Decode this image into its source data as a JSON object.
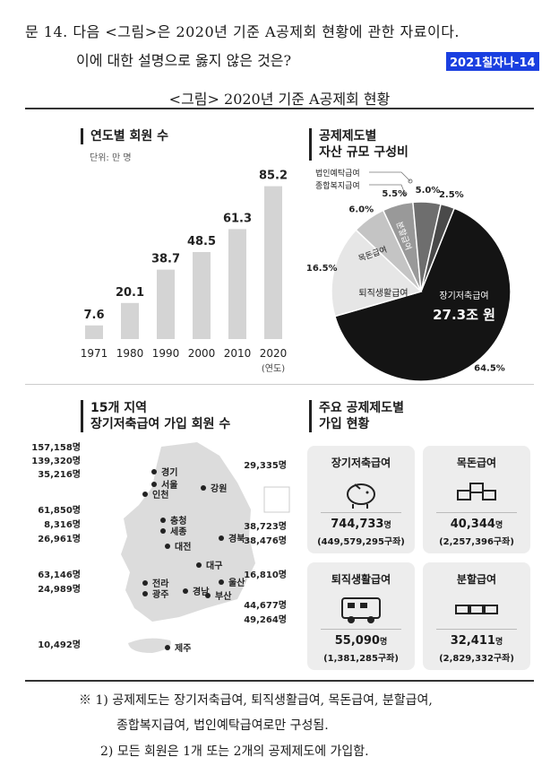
{
  "question": {
    "line1": "문 14. 다음 <그림>은 2020년 기준 A공제회 현황에 관한 자료이다.",
    "line2": "이에 대한 설명으로 옳지 않은 것은?",
    "tag": "2021칠자나-14"
  },
  "figure_title": "<그림> 2020년 기준 A공제회 현황",
  "members": {
    "title": "연도별 회원 수",
    "unit": "단위: 만 명",
    "axis_suffix": "(연도)"
  },
  "pie": {
    "title_line1": "공제제도별",
    "title_line2": "자산 규모 구성비",
    "callout1": "법인예탁급여",
    "callout2": "종합복지급여",
    "labels": [
      "64.5%",
      "16.5%",
      "6.0%",
      "5.5%",
      "5.0%",
      "2.5%"
    ],
    "slice_names": [
      "장기저축급여",
      "퇴직생활급여",
      "목돈급여",
      "분할급여"
    ],
    "center_amount": "27.3조 원"
  },
  "map": {
    "title_line1": "15개 지역",
    "title_line2": "장기저축급여 가입 회원 수",
    "values": [
      "157,158명",
      "139,320명",
      "35,216명",
      "61,850명",
      "8,316명",
      "26,961명",
      "63,146명",
      "24,989명",
      "10,492명",
      "29,335명",
      "38,723명",
      "38,476명",
      "16,810명",
      "44,677명",
      "49,264명"
    ],
    "regions": [
      "경기",
      "서울",
      "인천",
      "강원",
      "충청",
      "세종",
      "대전",
      "경북",
      "대구",
      "전라",
      "광주",
      "울산",
      "경남",
      "부산",
      "제주"
    ]
  },
  "plans": {
    "title_line1": "주요 공제제도별",
    "title_line2": "가입 현황",
    "cards": [
      {
        "name": "장기저축급여",
        "members": "744,733",
        "unit": "명",
        "accounts": "(449,579,295구좌)"
      },
      {
        "name": "목돈급여",
        "members": "40,344",
        "unit": "명",
        "accounts": "(2,257,396구좌)"
      },
      {
        "name": "퇴직생활급여",
        "members": "55,090",
        "unit": "명",
        "accounts": "(1,381,285구좌)"
      },
      {
        "name": "분할급여",
        "members": "32,411",
        "unit": "명",
        "accounts": "(2,829,332구좌)"
      }
    ]
  },
  "notes": {
    "n1a": "※ 1) 공제제도는 장기저축급여, 퇴직생활급여, 목돈급여, 분할급여,",
    "n1b": "종합복지급여, 법인예탁급여로만 구성됨.",
    "n2": "2) 모든 회원은 1개 또는 2개의 공제제도에 가입함."
  },
  "chart_data": [
    {
      "type": "bar",
      "title": "연도별 회원 수",
      "categories": [
        "1971",
        "1980",
        "1990",
        "2000",
        "2010",
        "2020"
      ],
      "values": [
        7.6,
        20.1,
        38.7,
        48.5,
        61.3,
        85.2
      ],
      "xlabel": "(연도)",
      "ylabel": "단위: 만 명",
      "ylim": [
        0,
        90
      ],
      "colors": [
        "#d4d4d4",
        "#d4d4d4",
        "#d4d4d4",
        "#d4d4d4",
        "#d4d4d4",
        "#d4d4d4"
      ]
    },
    {
      "type": "pie",
      "title": "공제제도별 자산 규모 구성비",
      "categories": [
        "장기저축급여",
        "퇴직생활급여",
        "목돈급여",
        "분할급여",
        "종합복지급여",
        "법인예탁급여"
      ],
      "values": [
        64.5,
        16.5,
        6.0,
        5.5,
        5.0,
        2.5
      ],
      "colors": [
        "#141414",
        "#e6e6e6",
        "#c4c4c4",
        "#999999",
        "#6e6e6e",
        "#4a4a4a"
      ]
    }
  ]
}
